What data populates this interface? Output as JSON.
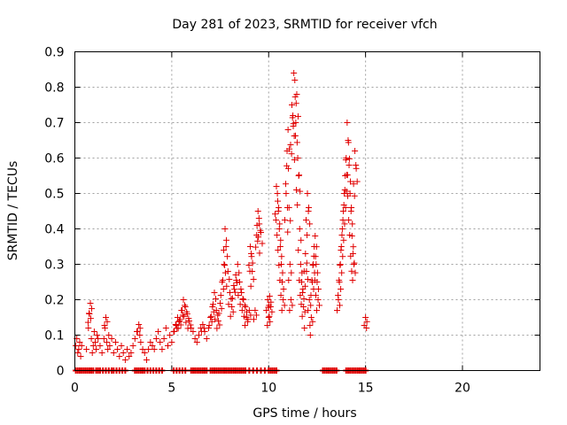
{
  "chart_data": {
    "type": "scatter",
    "title": "Day 281 of 2023, SRMTID for receiver vfch",
    "xlabel": "GPS time / hours",
    "ylabel": "SRMTID / TECUs",
    "xlim": [
      0,
      24
    ],
    "ylim": [
      0,
      0.9
    ],
    "xticks": [
      0,
      5,
      10,
      15,
      20
    ],
    "yticks": [
      0,
      0.1,
      0.2,
      0.3,
      0.4,
      0.5,
      0.6,
      0.7,
      0.8,
      0.9
    ],
    "xtick_labels": [
      "0",
      "5",
      "10",
      "15",
      "20"
    ],
    "ytick_labels": [
      "0",
      "0.1",
      "0.2",
      "0.3",
      "0.4",
      "0.5",
      "0.6",
      "0.7",
      "0.8",
      "0.9"
    ],
    "grid": true,
    "marker_color": "#e00000",
    "series": [
      {
        "name": "SRMTID",
        "marker": "plus",
        "points": [
          [
            0.05,
            0.07
          ],
          [
            0.1,
            0.09
          ],
          [
            0.15,
            0.05
          ],
          [
            0.2,
            0.06
          ],
          [
            0.25,
            0.08
          ],
          [
            0.3,
            0.04
          ],
          [
            0.35,
            0.07
          ],
          [
            0.6,
            0.06
          ],
          [
            0.7,
            0.12
          ],
          [
            0.75,
            0.16
          ],
          [
            0.8,
            0.19
          ],
          [
            0.85,
            0.09
          ],
          [
            0.9,
            0.05
          ],
          [
            0.95,
            0.07
          ],
          [
            1.0,
            0.11
          ],
          [
            1.05,
            0.08
          ],
          [
            1.1,
            0.06
          ],
          [
            1.15,
            0.1
          ],
          [
            1.2,
            0.09
          ],
          [
            1.3,
            0.07
          ],
          [
            1.4,
            0.05
          ],
          [
            1.5,
            0.09
          ],
          [
            1.55,
            0.12
          ],
          [
            1.6,
            0.15
          ],
          [
            1.65,
            0.08
          ],
          [
            1.7,
            0.06
          ],
          [
            1.75,
            0.1
          ],
          [
            1.8,
            0.07
          ],
          [
            1.9,
            0.09
          ],
          [
            2.0,
            0.05
          ],
          [
            2.1,
            0.08
          ],
          [
            2.2,
            0.06
          ],
          [
            2.3,
            0.04
          ],
          [
            2.4,
            0.07
          ],
          [
            2.5,
            0.05
          ],
          [
            2.6,
            0.03
          ],
          [
            2.7,
            0.06
          ],
          [
            2.8,
            0.04
          ],
          [
            2.9,
            0.05
          ],
          [
            3.0,
            0.07
          ],
          [
            3.1,
            0.09
          ],
          [
            3.2,
            0.11
          ],
          [
            3.3,
            0.13
          ],
          [
            3.35,
            0.1
          ],
          [
            3.4,
            0.08
          ],
          [
            3.5,
            0.06
          ],
          [
            3.6,
            0.05
          ],
          [
            3.7,
            0.03
          ],
          [
            3.8,
            0.06
          ],
          [
            3.9,
            0.08
          ],
          [
            4.0,
            0.07
          ],
          [
            4.1,
            0.06
          ],
          [
            4.2,
            0.09
          ],
          [
            4.3,
            0.11
          ],
          [
            4.4,
            0.08
          ],
          [
            4.5,
            0.06
          ],
          [
            4.6,
            0.09
          ],
          [
            4.7,
            0.12
          ],
          [
            4.8,
            0.07
          ],
          [
            4.9,
            0.1
          ],
          [
            5.0,
            0.08
          ],
          [
            5.1,
            0.11
          ],
          [
            5.2,
            0.13
          ],
          [
            5.3,
            0.15
          ],
          [
            5.4,
            0.14
          ],
          [
            5.5,
            0.17
          ],
          [
            5.6,
            0.2
          ],
          [
            5.7,
            0.18
          ],
          [
            5.8,
            0.16
          ],
          [
            5.9,
            0.14
          ],
          [
            6.0,
            0.12
          ],
          [
            6.1,
            0.11
          ],
          [
            6.2,
            0.09
          ],
          [
            6.3,
            0.08
          ],
          [
            6.4,
            0.1
          ],
          [
            6.5,
            0.12
          ],
          [
            6.6,
            0.13
          ],
          [
            6.7,
            0.11
          ],
          [
            6.8,
            0.09
          ],
          [
            6.9,
            0.12
          ],
          [
            7.0,
            0.15
          ],
          [
            7.1,
            0.18
          ],
          [
            7.2,
            0.22
          ],
          [
            7.3,
            0.17
          ],
          [
            7.4,
            0.14
          ],
          [
            7.5,
            0.19
          ],
          [
            7.6,
            0.25
          ],
          [
            7.7,
            0.3
          ],
          [
            7.75,
            0.4
          ],
          [
            7.8,
            0.35
          ],
          [
            7.9,
            0.28
          ],
          [
            8.0,
            0.22
          ],
          [
            8.1,
            0.18
          ],
          [
            8.2,
            0.24
          ],
          [
            8.3,
            0.27
          ],
          [
            8.4,
            0.3
          ],
          [
            8.5,
            0.25
          ],
          [
            8.6,
            0.22
          ],
          [
            8.7,
            0.2
          ],
          [
            8.8,
            0.18
          ],
          [
            8.85,
            0.15
          ],
          [
            9.0,
            0.17
          ],
          [
            9.05,
            0.35
          ],
          [
            9.1,
            0.33
          ],
          [
            9.15,
            0.28
          ],
          [
            9.3,
            0.17
          ],
          [
            9.4,
            0.41
          ],
          [
            9.45,
            0.45
          ],
          [
            9.5,
            0.43
          ],
          [
            9.6,
            0.39
          ],
          [
            9.95,
            0.2
          ],
          [
            10.0,
            0.15
          ],
          [
            10.05,
            0.21
          ],
          [
            10.1,
            0.18
          ],
          [
            10.4,
            0.52
          ],
          [
            10.45,
            0.5
          ],
          [
            10.5,
            0.45
          ],
          [
            10.55,
            0.4
          ],
          [
            10.6,
            0.35
          ],
          [
            10.65,
            0.3
          ],
          [
            10.7,
            0.25
          ],
          [
            10.75,
            0.2
          ],
          [
            10.9,
            0.5
          ],
          [
            10.95,
            0.62
          ],
          [
            11.0,
            0.68
          ],
          [
            11.05,
            0.46
          ],
          [
            11.1,
            0.3
          ],
          [
            11.15,
            0.2
          ],
          [
            11.2,
            0.75
          ],
          [
            11.25,
            0.72
          ],
          [
            11.3,
            0.84
          ],
          [
            11.35,
            0.82
          ],
          [
            11.4,
            0.7
          ],
          [
            11.45,
            0.78
          ],
          [
            11.5,
            0.6
          ],
          [
            11.55,
            0.55
          ],
          [
            11.6,
            0.4
          ],
          [
            11.65,
            0.3
          ],
          [
            11.7,
            0.25
          ],
          [
            11.75,
            0.22
          ],
          [
            11.8,
            0.18
          ],
          [
            11.85,
            0.12
          ],
          [
            11.9,
            0.33
          ],
          [
            11.95,
            0.28
          ],
          [
            12.0,
            0.5
          ],
          [
            12.05,
            0.45
          ],
          [
            12.1,
            0.2
          ],
          [
            12.15,
            0.1
          ],
          [
            12.2,
            0.15
          ],
          [
            12.25,
            0.25
          ],
          [
            12.3,
            0.3
          ],
          [
            12.35,
            0.35
          ],
          [
            12.4,
            0.38
          ],
          [
            12.45,
            0.3
          ],
          [
            12.5,
            0.25
          ],
          [
            12.55,
            0.2
          ],
          [
            13.6,
            0.2
          ],
          [
            13.65,
            0.25
          ],
          [
            13.7,
            0.3
          ],
          [
            13.75,
            0.35
          ],
          [
            13.8,
            0.4
          ],
          [
            13.85,
            0.45
          ],
          [
            13.9,
            0.5
          ],
          [
            13.95,
            0.55
          ],
          [
            14.0,
            0.6
          ],
          [
            14.05,
            0.7
          ],
          [
            14.1,
            0.65
          ],
          [
            14.15,
            0.58
          ],
          [
            14.2,
            0.5
          ],
          [
            14.25,
            0.45
          ],
          [
            14.3,
            0.38
          ],
          [
            14.35,
            0.33
          ],
          [
            14.4,
            0.3
          ],
          [
            14.45,
            0.62
          ],
          [
            14.5,
            0.58
          ],
          [
            15.0,
            0.15
          ],
          [
            15.05,
            0.12
          ]
        ]
      }
    ],
    "zero_points_x": [
      0.05,
      0.15,
      0.25,
      0.35,
      0.45,
      0.55,
      0.65,
      0.75,
      0.85,
      0.95,
      1.1,
      1.2,
      1.3,
      1.45,
      1.6,
      1.75,
      1.9,
      2.0,
      2.15,
      2.3,
      2.45,
      2.6,
      3.1,
      3.2,
      3.3,
      3.4,
      3.5,
      3.6,
      3.75,
      3.9,
      4.05,
      4.2,
      4.35,
      4.5,
      5.1,
      5.25,
      5.4,
      5.55,
      5.7,
      6.0,
      6.1,
      6.2,
      6.3,
      6.4,
      6.5,
      6.6,
      6.7,
      6.8,
      7.0,
      7.1,
      7.2,
      7.3,
      7.4,
      7.5,
      7.6,
      7.7,
      7.8,
      7.9,
      8.0,
      8.1,
      8.2,
      8.3,
      8.4,
      8.5,
      8.6,
      8.7,
      8.8,
      9.0,
      9.2,
      9.4,
      9.6,
      9.8,
      10.0,
      10.1,
      10.2,
      10.3,
      10.4,
      12.8,
      12.9,
      13.0,
      13.1,
      13.2,
      13.3,
      13.4,
      13.5,
      14.0,
      14.1,
      14.2,
      14.3,
      14.4,
      14.5,
      14.6,
      14.7,
      14.8,
      14.9,
      15.0
    ]
  }
}
